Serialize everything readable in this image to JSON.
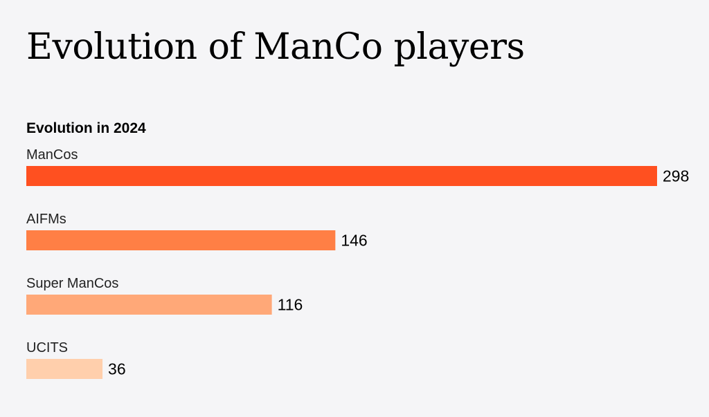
{
  "title": "Evolution of ManCo players",
  "chart_data": {
    "type": "bar",
    "orientation": "horizontal",
    "title": "Evolution in 2024",
    "categories": [
      "ManCos",
      "AIFMs",
      "Super ManCos",
      "UCITS"
    ],
    "values": [
      298,
      146,
      116,
      36
    ],
    "value_labels": [
      "298",
      "146",
      "116",
      "36"
    ],
    "colors": [
      "#ff5020",
      "#ff7f45",
      "#ffa878",
      "#ffcfac"
    ],
    "xlim": [
      0,
      298
    ],
    "grid": false,
    "legend": "none"
  }
}
